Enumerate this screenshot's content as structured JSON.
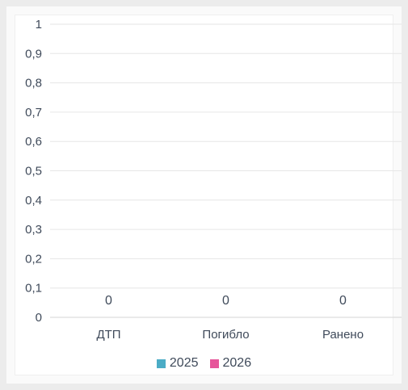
{
  "chart_data": {
    "type": "bar",
    "categories": [
      "ДТП",
      "Погибло",
      "Ранено"
    ],
    "series": [
      {
        "name": "2025",
        "values": [
          0,
          0,
          0
        ],
        "color": "#4bacc6"
      },
      {
        "name": "2026",
        "values": [
          0,
          0,
          0
        ],
        "color": "#e6559a"
      }
    ],
    "yticks": [
      "0",
      "0,1",
      "0,2",
      "0,3",
      "0,4",
      "0,5",
      "0,6",
      "0,7",
      "0,8",
      "0,9",
      "1"
    ],
    "ylim": [
      0,
      1
    ],
    "data_labels": [
      "0",
      "0",
      "0"
    ],
    "grid": true,
    "legend_position": "bottom"
  }
}
